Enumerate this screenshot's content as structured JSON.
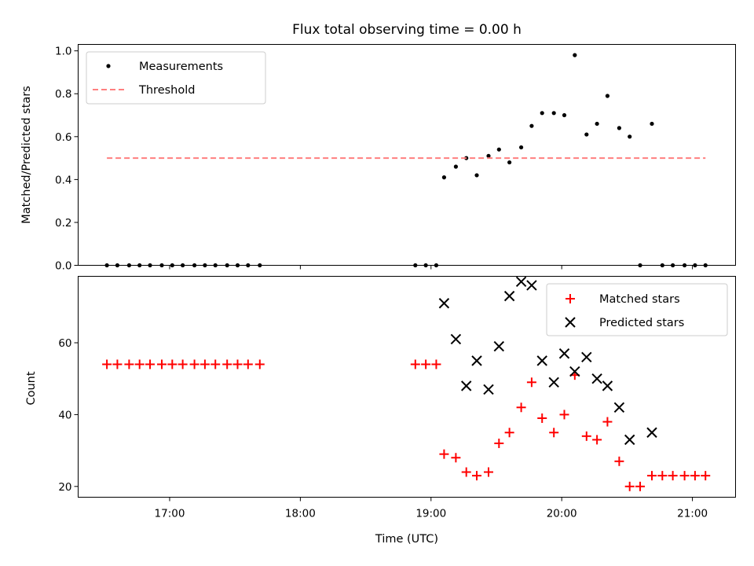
{
  "chart_data": {
    "title": "Flux total observing time = 0.00 h",
    "xlabel": "Time (UTC)",
    "x_tick_labels": [
      "17:00",
      "18:00",
      "19:00",
      "20:00",
      "21:00"
    ],
    "x_ticks_hours": [
      17,
      18,
      19,
      20,
      21
    ],
    "xlim_hours": [
      16.3,
      21.33
    ],
    "panels": [
      {
        "type": "scatter",
        "ylabel": "Matched/Predicted stars",
        "ylim": [
          0,
          1.03
        ],
        "y_ticks": [
          0.0,
          0.2,
          0.4,
          0.6,
          0.8,
          1.0
        ],
        "y_tick_labels": [
          "0.0",
          "0.2",
          "0.4",
          "0.6",
          "0.8",
          "1.0"
        ],
        "legend_position": "upper-left",
        "series": [
          {
            "name": "Measurements",
            "marker": "dot",
            "color": "#000000",
            "x": [
              16.52,
              16.6,
              16.69,
              16.77,
              16.85,
              16.94,
              17.02,
              17.1,
              17.19,
              17.27,
              17.35,
              17.44,
              17.52,
              17.6,
              17.69,
              18.88,
              18.96,
              19.04,
              19.1,
              19.19,
              19.27,
              19.35,
              19.44,
              19.52,
              19.6,
              19.69,
              19.77,
              19.85,
              19.94,
              20.02,
              20.1,
              20.19,
              20.27,
              20.35,
              20.44,
              20.52,
              20.6,
              20.69,
              20.77,
              20.85,
              20.94,
              21.02,
              21.1
            ],
            "y": [
              0,
              0,
              0,
              0,
              0,
              0,
              0,
              0,
              0,
              0,
              0,
              0,
              0,
              0,
              0,
              0,
              0,
              0,
              0.41,
              0.46,
              0.5,
              0.42,
              0.51,
              0.54,
              0.48,
              0.55,
              0.65,
              0.71,
              0.71,
              0.7,
              0.98,
              0.61,
              0.66,
              0.79,
              0.64,
              0.6,
              0,
              0.66,
              0,
              0,
              0,
              0,
              0
            ]
          },
          {
            "name": "Threshold",
            "marker": "dashed-line",
            "color": "#ff7f7f",
            "x": [
              16.52,
              21.1
            ],
            "y": [
              0.5,
              0.5
            ]
          }
        ]
      },
      {
        "type": "scatter",
        "ylabel": "Count",
        "ylim": [
          17,
          78.5
        ],
        "y_ticks": [
          20,
          40,
          60
        ],
        "y_tick_labels": [
          "20",
          "40",
          "60"
        ],
        "legend_position": "upper-right",
        "series": [
          {
            "name": "Matched stars",
            "marker": "plus",
            "color": "#ff0000",
            "x": [
              16.52,
              16.6,
              16.69,
              16.77,
              16.85,
              16.94,
              17.02,
              17.1,
              17.19,
              17.27,
              17.35,
              17.44,
              17.52,
              17.6,
              17.69,
              18.88,
              18.96,
              19.04,
              19.1,
              19.19,
              19.27,
              19.35,
              19.44,
              19.52,
              19.6,
              19.69,
              19.77,
              19.85,
              19.94,
              20.02,
              20.1,
              20.19,
              20.27,
              20.35,
              20.44,
              20.52,
              20.6,
              20.69,
              20.77,
              20.85,
              20.94,
              21.02,
              21.1
            ],
            "y": [
              54,
              54,
              54,
              54,
              54,
              54,
              54,
              54,
              54,
              54,
              54,
              54,
              54,
              54,
              54,
              54,
              54,
              54,
              29,
              28,
              24,
              23,
              24,
              32,
              35,
              42,
              49,
              39,
              35,
              40,
              51,
              34,
              33,
              38,
              27,
              20,
              20,
              23,
              23,
              23,
              23,
              23,
              23
            ]
          },
          {
            "name": "Predicted stars",
            "marker": "x",
            "color": "#000000",
            "x": [
              19.1,
              19.19,
              19.27,
              19.35,
              19.44,
              19.52,
              19.6,
              19.69,
              19.77,
              19.85,
              19.94,
              20.02,
              20.1,
              20.19,
              20.27,
              20.35,
              20.44,
              20.52,
              20.69
            ],
            "y": [
              71,
              61,
              48,
              55,
              47,
              59,
              73,
              77,
              76,
              55,
              49,
              57,
              52,
              56,
              50,
              48,
              42,
              33,
              35
            ]
          }
        ]
      }
    ]
  }
}
